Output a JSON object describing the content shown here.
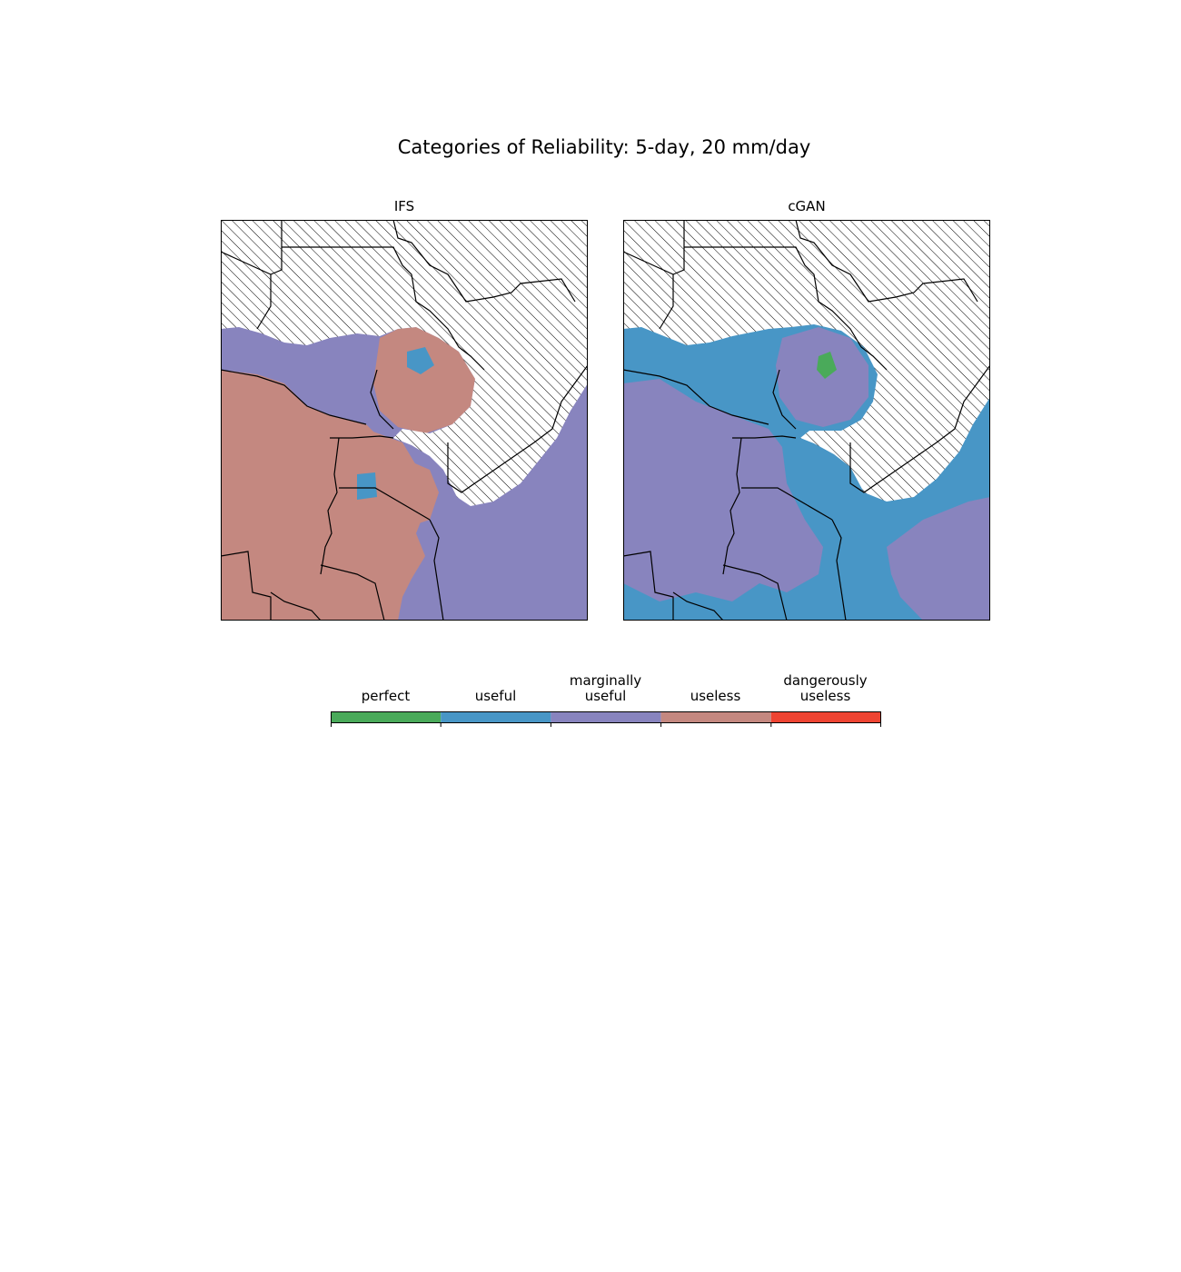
{
  "figure": {
    "title": "Categories of Reliability: 5-day, 20 mm/day"
  },
  "panels": [
    {
      "title": "IFS",
      "dominant_category": "useless",
      "secondary_category": "marginally useful"
    },
    {
      "title": "cGAN",
      "dominant_category": "useful",
      "secondary_category": "marginally useful"
    }
  ],
  "legend": {
    "categories": [
      {
        "label": "perfect",
        "color": "#4aaa5a"
      },
      {
        "label": "useful",
        "color": "#4896c6"
      },
      {
        "label": "marginally useful",
        "label_lines": [
          "marginally",
          "useful"
        ],
        "color": "#8884be"
      },
      {
        "label": "useless",
        "color": "#c48880"
      },
      {
        "label": "dangerously useless",
        "label_lines": [
          "dangerously",
          "useless"
        ],
        "color": "#ee4432"
      }
    ],
    "masked_area": "hatched"
  },
  "colors": {
    "border": "#000000",
    "hatch": "#000000",
    "background": "#ffffff"
  }
}
